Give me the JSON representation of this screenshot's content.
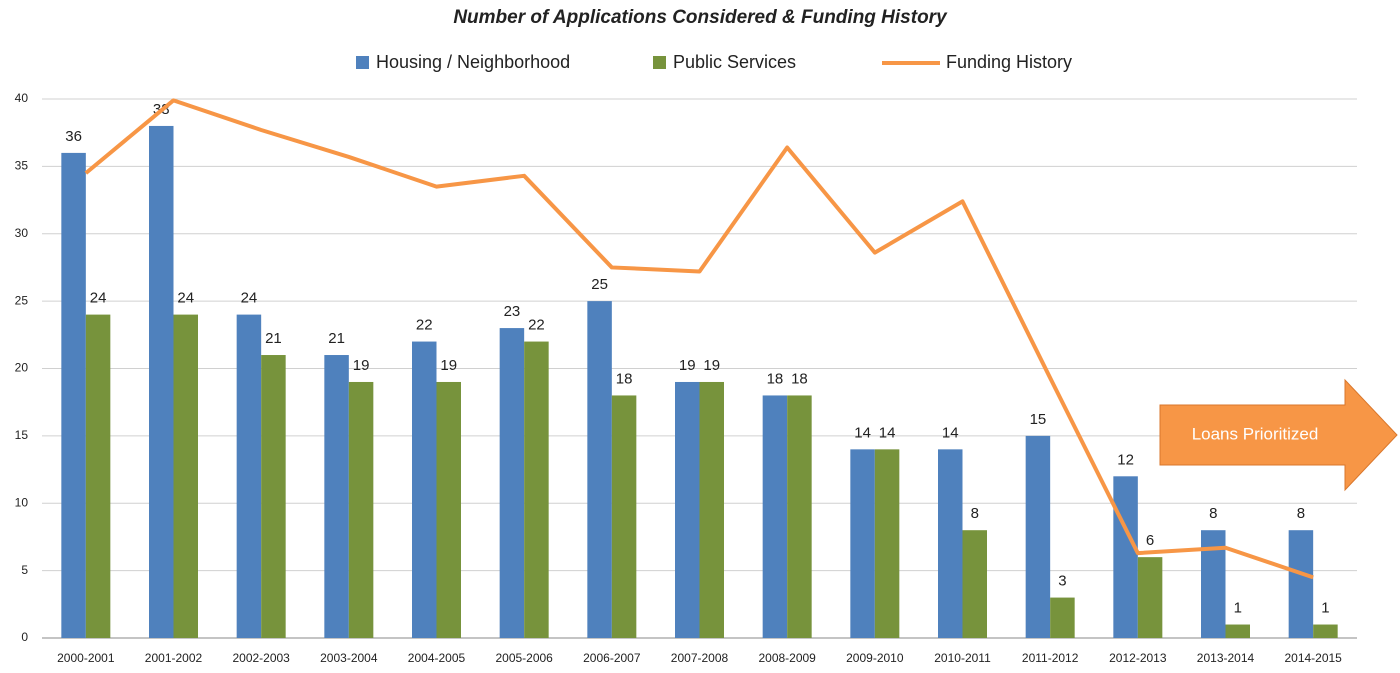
{
  "chart_data": {
    "type": "bar",
    "title": "Number of Applications Considered & Funding History",
    "categories": [
      "2000-2001",
      "2001-2002",
      "2002-2003",
      "2003-2004",
      "2004-2005",
      "2005-2006",
      "2006-2007",
      "2007-2008",
      "2008-2009",
      "2009-2010",
      "2010-2011",
      "2011-2012",
      "2012-2013",
      "2013-2014",
      "2014-2015"
    ],
    "series": [
      {
        "name": "Housing / Neighborhood",
        "color": "#4f81bd",
        "type": "bar",
        "values": [
          36,
          38,
          24,
          21,
          22,
          23,
          25,
          19,
          18,
          14,
          14,
          15,
          12,
          8,
          8
        ]
      },
      {
        "name": "Public Services",
        "color": "#77933c",
        "type": "bar",
        "values": [
          24,
          24,
          21,
          19,
          19,
          22,
          18,
          19,
          18,
          14,
          8,
          3,
          6,
          1,
          1
        ]
      },
      {
        "name": "Funding History",
        "color": "#f79646",
        "type": "line",
        "values": [
          34.5,
          39.9,
          37.7,
          35.7,
          33.5,
          34.3,
          27.5,
          27.2,
          36.4,
          28.6,
          32.4,
          19.3,
          6.3,
          6.7,
          4.5
        ]
      }
    ],
    "ylim": [
      0,
      40
    ],
    "yticks": [
      0,
      5,
      10,
      15,
      20,
      25,
      30,
      35,
      40
    ],
    "grid": true,
    "legend": "top",
    "annotations": [
      "Loans Prioritized"
    ]
  }
}
